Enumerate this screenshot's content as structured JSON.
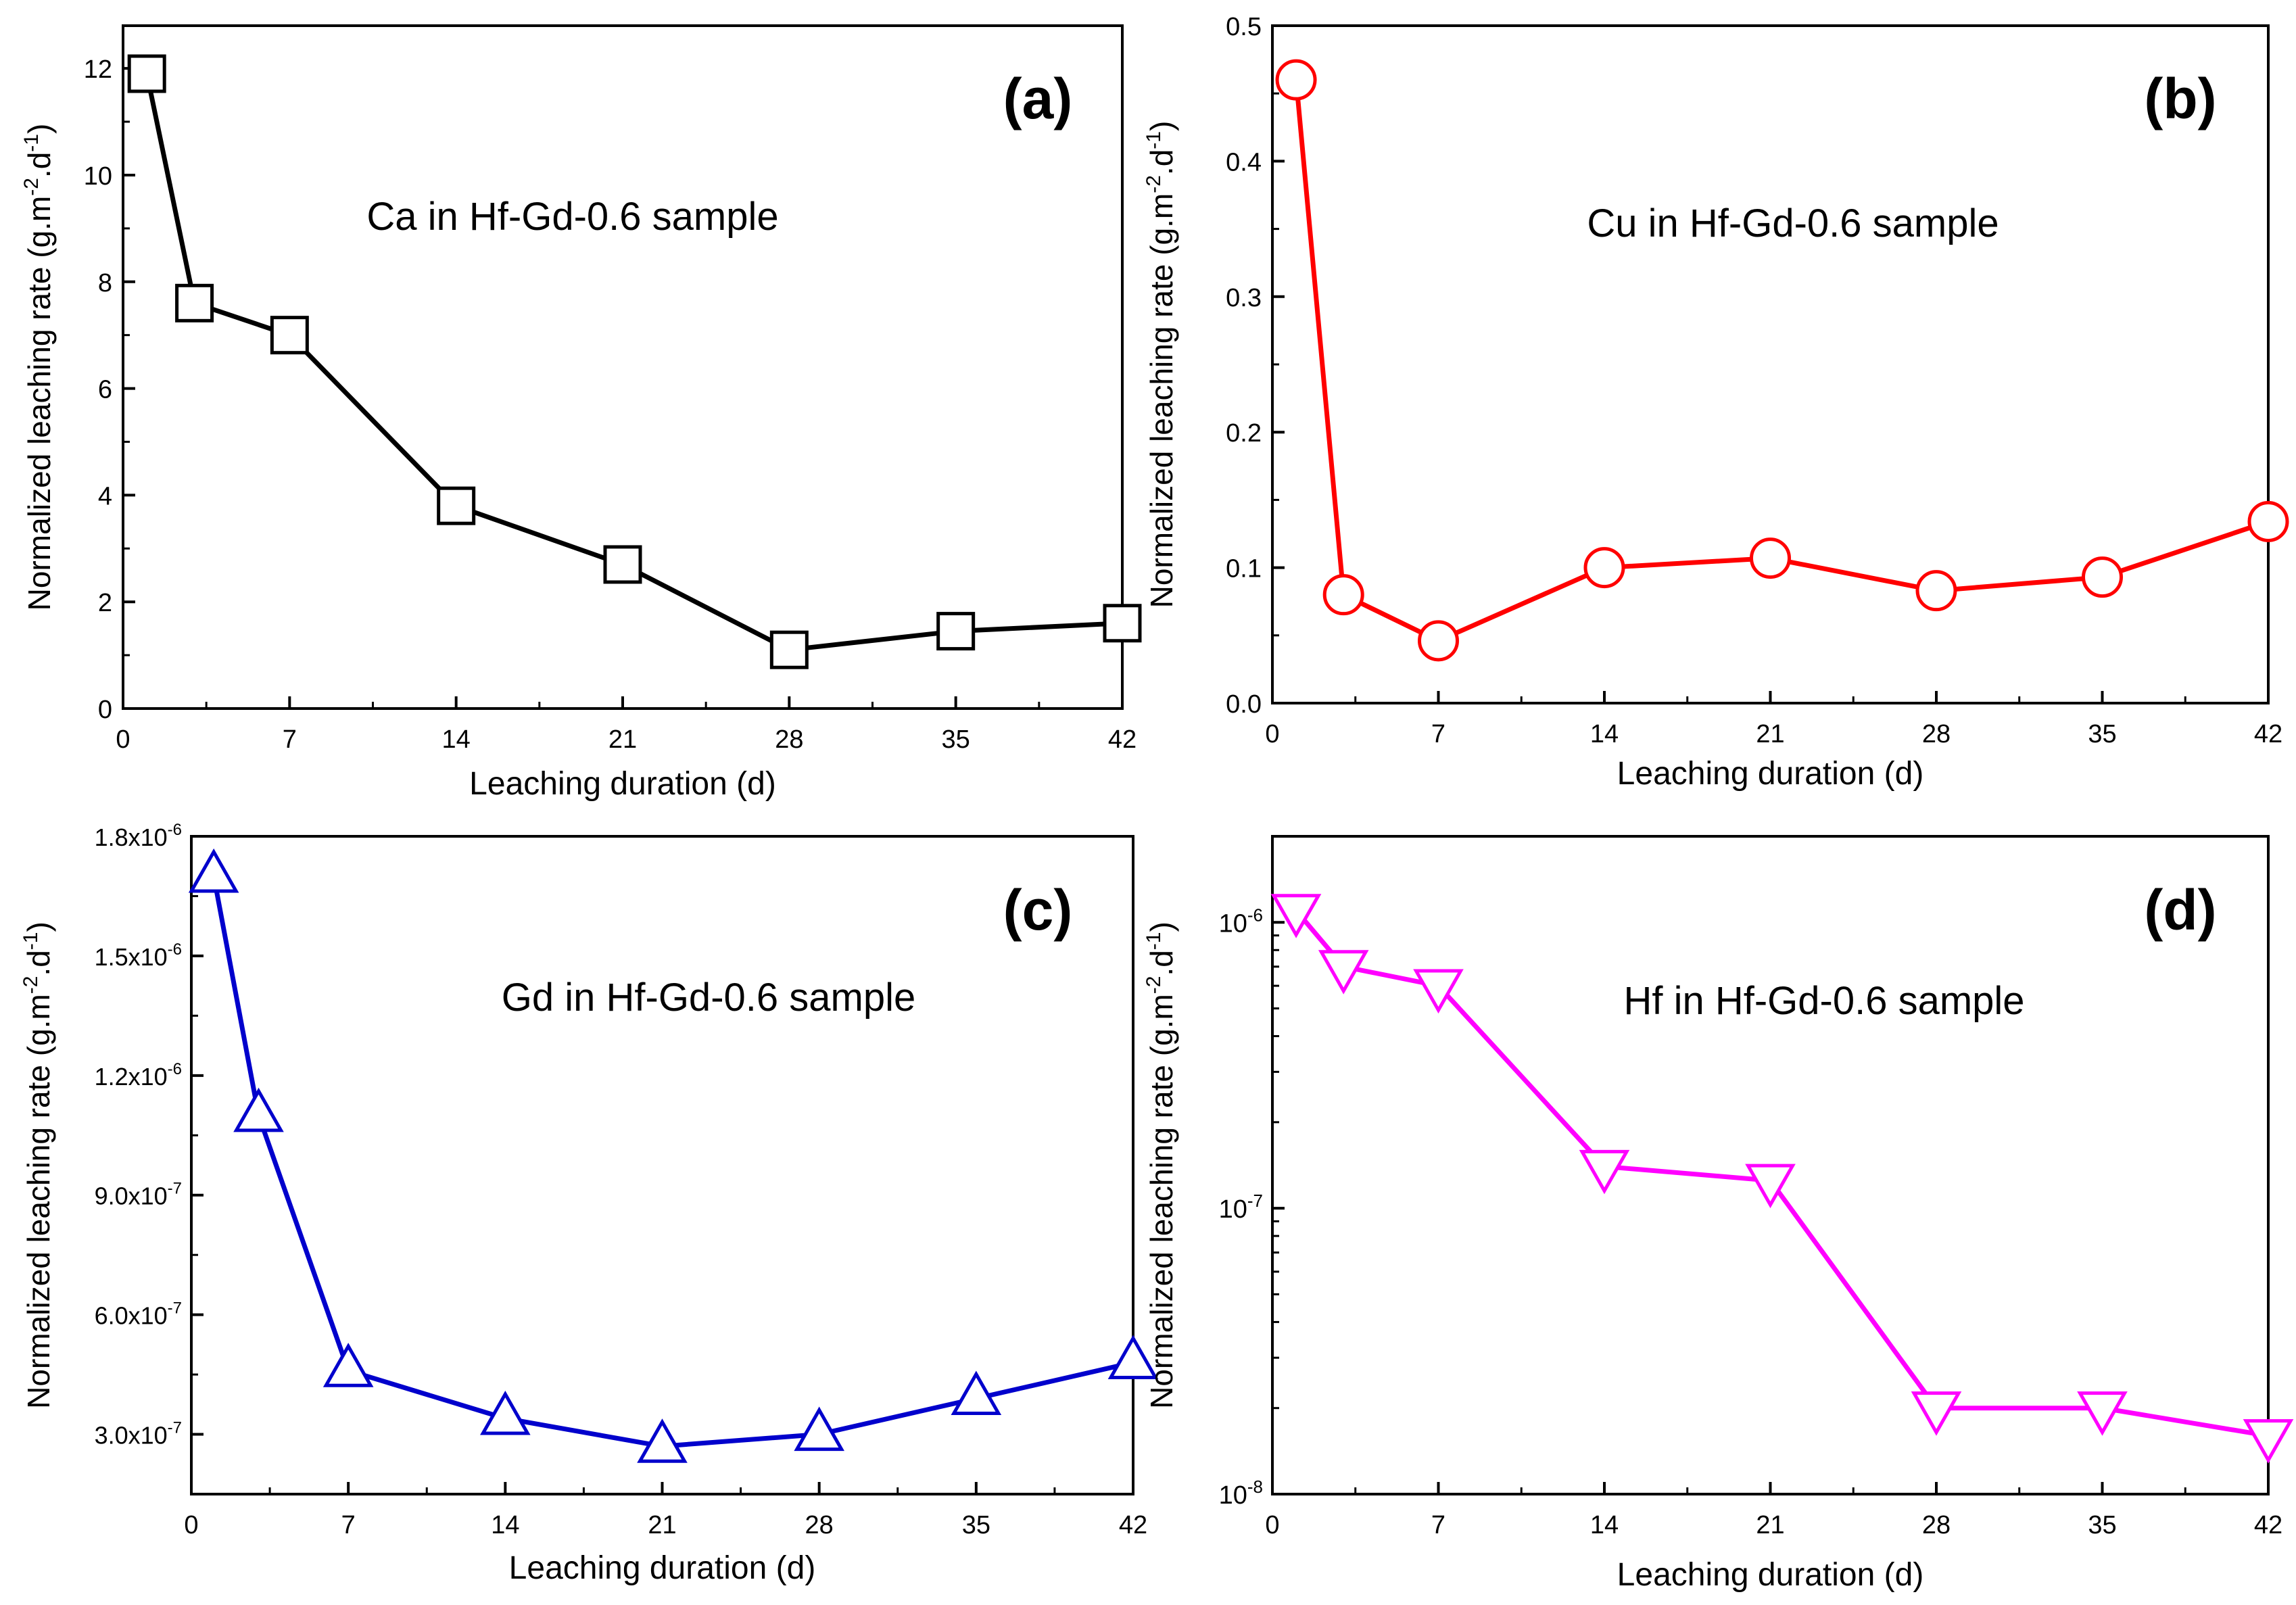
{
  "chart_data": [
    {
      "id": "a",
      "type": "line",
      "panel_label": "(a)",
      "annotation": "Ca in Hf-Gd-0.6 sample",
      "xlabel": "Leaching duration (d)",
      "ylabel_main": "Normalized leaching rate (g.m",
      "ylabel_sup1": "-2",
      "ylabel_mid": ".d",
      "ylabel_sup2": "-1",
      "ylabel_end": ")",
      "yscale": "linear",
      "xlim": [
        0,
        42
      ],
      "ylim": [
        0,
        12.8
      ],
      "xticks": [
        "0",
        "7",
        "14",
        "21",
        "28",
        "35",
        "42"
      ],
      "yticks": [
        "0",
        "2",
        "4",
        "6",
        "8",
        "10",
        "12"
      ],
      "color": "#000000",
      "marker": "square",
      "series": [
        {
          "name": "Ca",
          "x": [
            1,
            3,
            7,
            14,
            21,
            28,
            35,
            42
          ],
          "y": [
            11.9,
            7.6,
            7.0,
            3.8,
            2.7,
            1.1,
            1.45,
            1.6
          ]
        }
      ]
    },
    {
      "id": "b",
      "type": "line",
      "panel_label": "(b)",
      "annotation": "Cu in Hf-Gd-0.6 sample",
      "xlabel": "Leaching duration (d)",
      "ylabel_main": "Normalized leaching rate (g.m",
      "ylabel_sup1": "-2",
      "ylabel_mid": ".d",
      "ylabel_sup2": "-1",
      "ylabel_end": ")",
      "yscale": "linear",
      "xlim": [
        0,
        42
      ],
      "ylim": [
        0,
        0.5
      ],
      "xticks": [
        "0",
        "7",
        "14",
        "21",
        "28",
        "35",
        "42"
      ],
      "yticks": [
        "0.0",
        "0.1",
        "0.2",
        "0.3",
        "0.4",
        "0.5"
      ],
      "color": "#ff0000",
      "marker": "circle",
      "series": [
        {
          "name": "Cu",
          "x": [
            1,
            3,
            7,
            14,
            21,
            28,
            35,
            42
          ],
          "y": [
            0.46,
            0.08,
            0.046,
            0.1,
            0.107,
            0.083,
            0.093,
            0.134
          ]
        }
      ]
    },
    {
      "id": "c",
      "type": "line",
      "panel_label": "(c)",
      "annotation": "Gd in Hf-Gd-0.6 sample",
      "xlabel": "Leaching duration (d)",
      "ylabel_main": "Normalized leaching rate (g.m",
      "ylabel_sup1": "-2",
      "ylabel_mid": ".d",
      "ylabel_sup2": "-1",
      "ylabel_end": ")",
      "yscale": "linear",
      "xlim": [
        0,
        42
      ],
      "ylim": [
        1.5e-07,
        1.8e-06
      ],
      "xticks": [
        "0",
        "7",
        "14",
        "21",
        "28",
        "35",
        "42"
      ],
      "yticks": [
        {
          "value": 3e-07,
          "mant": "3.0x10",
          "exp": "-7"
        },
        {
          "value": 6e-07,
          "mant": "6.0x10",
          "exp": "-7"
        },
        {
          "value": 9e-07,
          "mant": "9.0x10",
          "exp": "-7"
        },
        {
          "value": 1.2e-06,
          "mant": "1.2x10",
          "exp": "-6"
        },
        {
          "value": 1.5e-06,
          "mant": "1.5x10",
          "exp": "-6"
        },
        {
          "value": 1.8e-06,
          "mant": "1.8x10",
          "exp": "-6"
        }
      ],
      "color": "#0000cc",
      "marker": "triangle-up",
      "series": [
        {
          "name": "Gd",
          "x": [
            1,
            3,
            7,
            14,
            21,
            28,
            35,
            42
          ],
          "y": [
            1.7e-06,
            1.1e-06,
            4.6e-07,
            3.4e-07,
            2.7e-07,
            3e-07,
            3.9e-07,
            4.8e-07
          ]
        }
      ]
    },
    {
      "id": "d",
      "type": "line",
      "panel_label": "(d)",
      "annotation": "Hf in Hf-Gd-0.6 sample",
      "xlabel": "Leaching duration (d)",
      "ylabel_main": "Normalized leaching rate (g.m",
      "ylabel_sup1": "-2",
      "ylabel_mid": ".d",
      "ylabel_sup2": "-1",
      "ylabel_end": ")",
      "yscale": "log",
      "xlim": [
        0,
        42
      ],
      "ylim": [
        1e-08,
        2e-06
      ],
      "xticks": [
        "0",
        "7",
        "14",
        "21",
        "28",
        "35",
        "42"
      ],
      "yticks": [
        {
          "value": 1e-08,
          "mant": "10",
          "exp": "-8"
        },
        {
          "value": 1e-07,
          "mant": "10",
          "exp": "-7"
        },
        {
          "value": 1e-06,
          "mant": "10",
          "exp": "-6"
        }
      ],
      "color": "#ff00ff",
      "marker": "triangle-down",
      "series": [
        {
          "name": "Hf",
          "x": [
            1,
            3,
            7,
            14,
            21,
            28,
            35,
            42
          ],
          "y": [
            1.1e-06,
            7e-07,
            6e-07,
            1.4e-07,
            1.25e-07,
            2e-08,
            2e-08,
            1.6e-08
          ]
        }
      ]
    }
  ]
}
